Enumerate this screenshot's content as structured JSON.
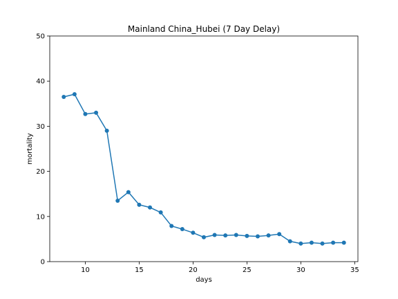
{
  "chart_data": {
    "type": "line",
    "title": "Mainland China_Hubei (7 Day Delay)",
    "xlabel": "days",
    "ylabel": "mortality",
    "xlim": [
      6.7,
      35.3
    ],
    "ylim": [
      0,
      50
    ],
    "x_ticks": [
      10,
      15,
      20,
      25,
      30,
      35
    ],
    "y_ticks": [
      0,
      10,
      20,
      30,
      40,
      50
    ],
    "grid": false,
    "series": [
      {
        "color": "#1f77b4",
        "marker": "circle",
        "x": [
          8,
          9,
          10,
          11,
          12,
          13,
          14,
          15,
          16,
          17,
          18,
          19,
          20,
          21,
          22,
          23,
          24,
          25,
          26,
          27,
          28,
          29,
          30,
          31,
          32,
          33,
          34
        ],
        "y": [
          36.5,
          37.1,
          32.7,
          33.0,
          29.0,
          13.5,
          15.4,
          12.6,
          12.0,
          10.9,
          7.9,
          7.2,
          6.4,
          5.4,
          5.9,
          5.8,
          5.9,
          5.7,
          5.6,
          5.8,
          6.1,
          4.5,
          4.0,
          4.2,
          4.0,
          4.2,
          4.2
        ]
      }
    ]
  }
}
